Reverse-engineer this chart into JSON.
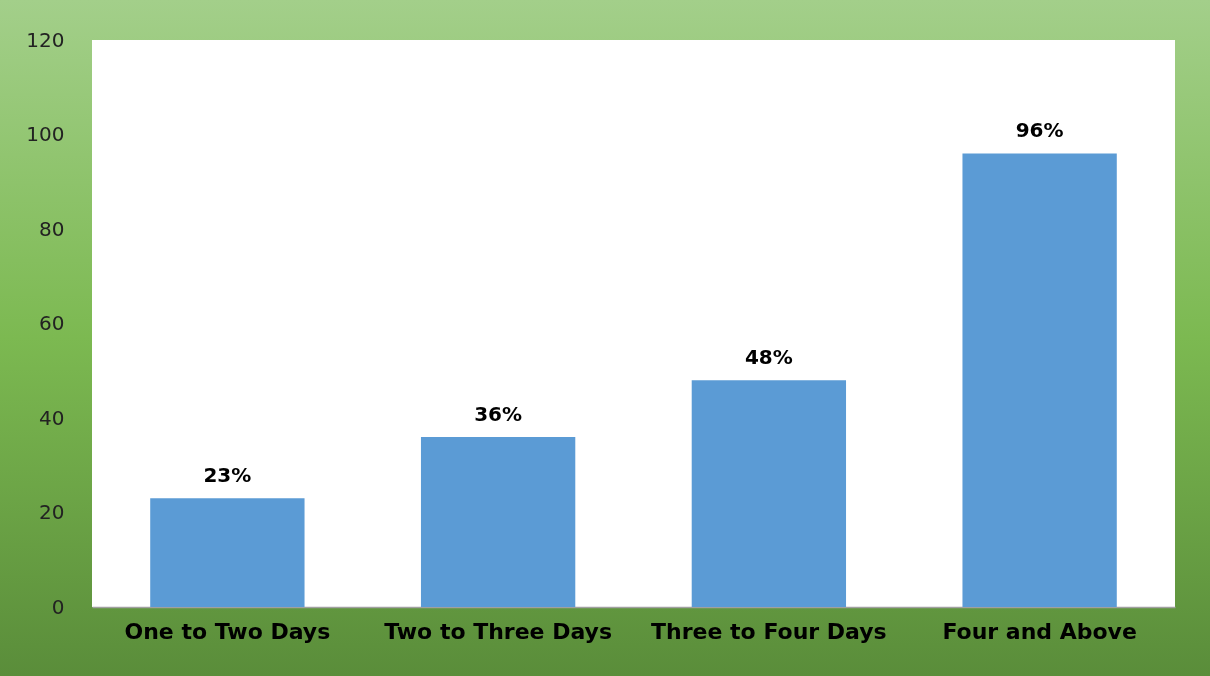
{
  "chart_data": {
    "type": "bar",
    "categories": [
      "One to Two Days",
      "Two to Three Days",
      "Three to Four Days",
      "Four and Above"
    ],
    "values": [
      23,
      36,
      48,
      96
    ],
    "value_labels": [
      "23%",
      "36%",
      "48%",
      "96%"
    ],
    "color": "#5b9bd5",
    "ylim": [
      0,
      120
    ],
    "yticks": [
      0,
      20,
      40,
      60,
      80,
      100,
      120
    ]
  }
}
